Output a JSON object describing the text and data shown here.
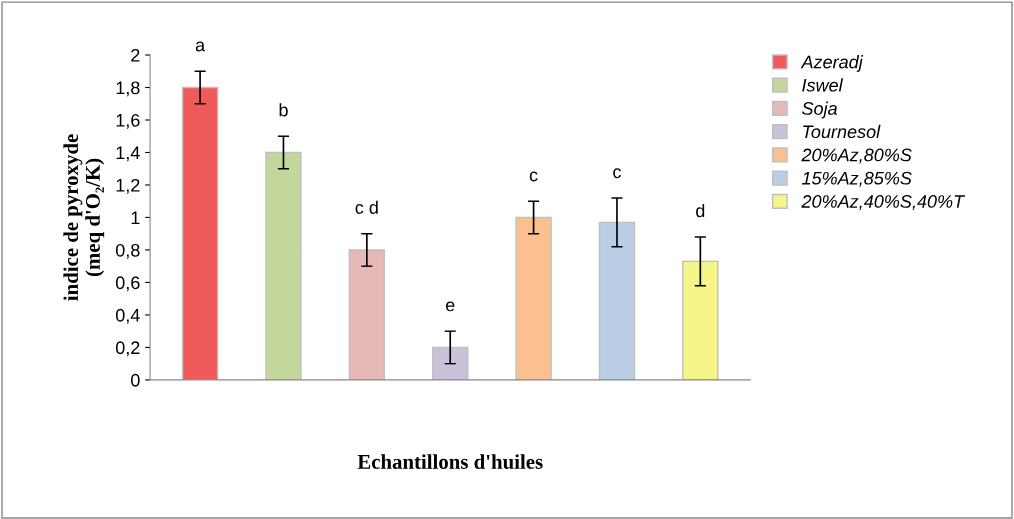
{
  "chart_data": {
    "type": "bar",
    "xlabel": "Echantillons d'huiles",
    "ylabel": "indice de pyroxyde\n(meq d'O₂/K)",
    "categories": [
      null,
      null,
      null,
      null,
      null,
      null,
      null
    ],
    "ylim": [
      0,
      2
    ],
    "yticks": [
      0,
      {
        "value": 0.2,
        "label": "0,2"
      },
      {
        "value": 0.4,
        "label": "0,4"
      },
      {
        "value": 0.6,
        "label": "0,6"
      },
      {
        "value": 0.8,
        "label": "0,8"
      },
      1,
      {
        "value": 1.2,
        "label": "1,2"
      },
      {
        "value": 1.4,
        "label": "1,4"
      },
      {
        "value": 1.6,
        "label": "1,6"
      },
      {
        "value": 1.8,
        "label": "1,8"
      },
      2
    ],
    "legend": "right",
    "grid": false,
    "series": [
      {
        "name": "Azeradj",
        "color": "#f15a5a",
        "values": [
          1.8,
          null,
          null,
          null,
          null,
          null,
          null
        ],
        "errors": [
          0.1,
          null,
          null,
          null,
          null,
          null,
          null
        ],
        "value_labels": [
          "a",
          null,
          null,
          null,
          null,
          null,
          null
        ]
      },
      {
        "name": "Iswel",
        "color": "#c3d69b",
        "values": [
          null,
          1.4,
          null,
          null,
          null,
          null,
          null
        ],
        "errors": [
          null,
          0.1,
          null,
          null,
          null,
          null,
          null
        ],
        "value_labels": [
          null,
          "b",
          null,
          null,
          null,
          null,
          null
        ]
      },
      {
        "name": "Soja",
        "color": "#e6b9b8",
        "values": [
          null,
          null,
          0.8,
          null,
          null,
          null,
          null
        ],
        "errors": [
          null,
          null,
          0.1,
          null,
          null,
          null,
          null
        ],
        "value_labels": [
          null,
          null,
          "c d",
          null,
          null,
          null,
          null
        ]
      },
      {
        "name": "Tournesol",
        "color": "#ccc1da",
        "values": [
          null,
          null,
          null,
          0.2,
          null,
          null,
          null
        ],
        "errors": [
          null,
          null,
          null,
          0.1,
          null,
          null,
          null
        ],
        "value_labels": [
          null,
          null,
          null,
          "e",
          null,
          null,
          null
        ]
      },
      {
        "name": "20%Az,80%S",
        "color": "#fac090",
        "values": [
          null,
          null,
          null,
          null,
          1.0,
          null,
          null
        ],
        "errors": [
          null,
          null,
          null,
          null,
          0.1,
          null,
          null
        ],
        "value_labels": [
          null,
          null,
          null,
          null,
          "c",
          null,
          null
        ]
      },
      {
        "name": "15%Az,85%S",
        "color": "#b9cde5",
        "values": [
          null,
          null,
          null,
          null,
          null,
          0.97,
          null
        ],
        "errors": [
          null,
          null,
          null,
          null,
          null,
          0.15,
          null
        ],
        "value_labels": [
          null,
          null,
          null,
          null,
          null,
          "c",
          null
        ]
      },
      {
        "name": "20%Az,40%S,40%T",
        "color": "#f5f58a",
        "values": [
          null,
          null,
          null,
          null,
          null,
          null,
          0.73
        ],
        "errors": [
          null,
          null,
          null,
          null,
          null,
          null,
          0.15
        ],
        "value_labels": [
          null,
          null,
          null,
          null,
          null,
          null,
          "d"
        ]
      }
    ]
  }
}
